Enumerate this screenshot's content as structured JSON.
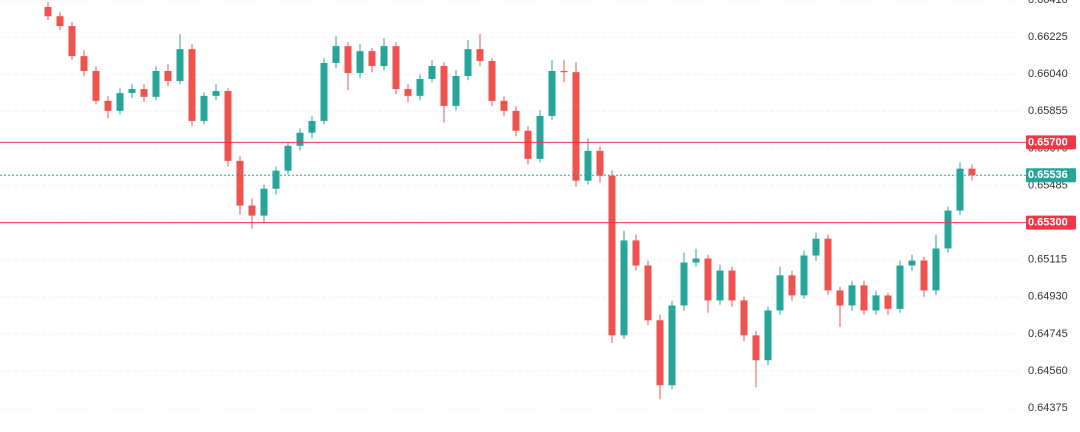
{
  "chart_data": {
    "type": "candlestick",
    "ylim": [
      0.64256,
      0.6641
    ],
    "yticks": [
      {
        "value": 0.6641,
        "label": "0.66410"
      },
      0.66225,
      {
        "value": 0.6604,
        "label": "0.66040"
      },
      0.65855,
      {
        "value": 0.6567,
        "label": "0.65670"
      },
      0.65485,
      {
        "value": 0.653,
        "label": "0.65300"
      },
      0.65115,
      {
        "value": 0.6493,
        "label": "0.64930"
      },
      0.64745,
      {
        "value": 0.6456,
        "label": "0.64560"
      },
      0.64375
    ],
    "grid": true,
    "up_color": "#26a69a",
    "down_color": "#ef5350",
    "levels": [
      {
        "value": 0.657,
        "label": "0.65700",
        "color": "#f23645"
      },
      {
        "value": 0.653,
        "label": "0.65300",
        "color": "#f23645"
      }
    ],
    "current_price": 0.65536,
    "current_color": "#26a69a",
    "candles": [
      [
        0.66375,
        0.664,
        0.6631,
        0.66329
      ],
      [
        0.66329,
        0.6635,
        0.6626,
        0.6628
      ],
      [
        0.6628,
        0.663,
        0.6611,
        0.6613
      ],
      [
        0.6613,
        0.6616,
        0.6603,
        0.66056
      ],
      [
        0.66056,
        0.6608,
        0.6589,
        0.65907
      ],
      [
        0.65907,
        0.6593,
        0.6582,
        0.65857
      ],
      [
        0.65857,
        0.6597,
        0.6584,
        0.65946
      ],
      [
        0.65946,
        0.6599,
        0.6592,
        0.65966
      ],
      [
        0.65966,
        0.6599,
        0.659,
        0.65927
      ],
      [
        0.65927,
        0.6608,
        0.6591,
        0.66056
      ],
      [
        0.66056,
        0.6609,
        0.6598,
        0.66006
      ],
      [
        0.66006,
        0.6624,
        0.6599,
        0.66165
      ],
      [
        0.66165,
        0.6619,
        0.6578,
        0.65807
      ],
      [
        0.65807,
        0.6595,
        0.6579,
        0.65932
      ],
      [
        0.65932,
        0.6599,
        0.6591,
        0.65956
      ],
      [
        0.65956,
        0.6597,
        0.6558,
        0.65608
      ],
      [
        0.65608,
        0.6563,
        0.6534,
        0.65385
      ],
      [
        0.65385,
        0.6542,
        0.6527,
        0.65335
      ],
      [
        0.65335,
        0.6549,
        0.653,
        0.65469
      ],
      [
        0.65469,
        0.6558,
        0.6544,
        0.65559
      ],
      [
        0.65559,
        0.657,
        0.6554,
        0.65683
      ],
      [
        0.65683,
        0.6577,
        0.6566,
        0.65748
      ],
      [
        0.65748,
        0.6583,
        0.6572,
        0.65807
      ],
      [
        0.65807,
        0.6612,
        0.6579,
        0.66096
      ],
      [
        0.66096,
        0.6623,
        0.6607,
        0.6618
      ],
      [
        0.6618,
        0.662,
        0.6596,
        0.66046
      ],
      [
        0.66046,
        0.6619,
        0.6602,
        0.66155
      ],
      [
        0.66155,
        0.6617,
        0.6605,
        0.66081
      ],
      [
        0.66081,
        0.6622,
        0.6606,
        0.6618
      ],
      [
        0.6618,
        0.662,
        0.6594,
        0.65966
      ],
      [
        0.65966,
        0.6599,
        0.659,
        0.65932
      ],
      [
        0.65932,
        0.6604,
        0.6591,
        0.66016
      ],
      [
        0.66016,
        0.6611,
        0.66,
        0.66081
      ],
      [
        0.66081,
        0.661,
        0.658,
        0.65882
      ],
      [
        0.65882,
        0.6606,
        0.6586,
        0.66031
      ],
      [
        0.66031,
        0.6621,
        0.6601,
        0.66165
      ],
      [
        0.66165,
        0.6624,
        0.6608,
        0.66106
      ],
      [
        0.66106,
        0.6612,
        0.6588,
        0.65907
      ],
      [
        0.65907,
        0.6593,
        0.6583,
        0.65857
      ],
      [
        0.65857,
        0.6588,
        0.6573,
        0.65758
      ],
      [
        0.65758,
        0.6578,
        0.6559,
        0.65618
      ],
      [
        0.65618,
        0.6586,
        0.656,
        0.65832
      ],
      [
        0.65832,
        0.6611,
        0.6581,
        0.66056
      ],
      [
        0.66056,
        0.6611,
        0.66,
        0.6605
      ],
      [
        0.6605,
        0.661,
        0.6548,
        0.65509
      ],
      [
        0.65509,
        0.6572,
        0.6549,
        0.65658
      ],
      [
        0.65658,
        0.6568,
        0.655,
        0.65534
      ],
      [
        0.65534,
        0.6556,
        0.647,
        0.64738
      ],
      [
        0.64738,
        0.6526,
        0.6472,
        0.65211
      ],
      [
        0.65211,
        0.6524,
        0.6506,
        0.65086
      ],
      [
        0.65086,
        0.6511,
        0.6479,
        0.64813
      ],
      [
        0.64813,
        0.6484,
        0.6442,
        0.64489
      ],
      [
        0.64489,
        0.6491,
        0.6447,
        0.64887
      ],
      [
        0.64887,
        0.6515,
        0.6486,
        0.65101
      ],
      [
        0.65101,
        0.6517,
        0.6508,
        0.65121
      ],
      [
        0.65121,
        0.6514,
        0.6485,
        0.64912
      ],
      [
        0.64912,
        0.6509,
        0.6489,
        0.65061
      ],
      [
        0.65061,
        0.6508,
        0.6488,
        0.64912
      ],
      [
        0.64912,
        0.6493,
        0.6471,
        0.64738
      ],
      [
        0.64738,
        0.6476,
        0.6448,
        0.64614
      ],
      [
        0.64614,
        0.6488,
        0.6459,
        0.64862
      ],
      [
        0.64862,
        0.6508,
        0.6484,
        0.65037
      ],
      [
        0.65037,
        0.6506,
        0.6491,
        0.64937
      ],
      [
        0.64937,
        0.6516,
        0.6492,
        0.65136
      ],
      [
        0.65136,
        0.6525,
        0.6511,
        0.6522
      ],
      [
        0.6522,
        0.6524,
        0.6494,
        0.64962
      ],
      [
        0.64962,
        0.6498,
        0.6478,
        0.64887
      ],
      [
        0.64887,
        0.6501,
        0.6486,
        0.64987
      ],
      [
        0.64987,
        0.6501,
        0.6484,
        0.64862
      ],
      [
        0.64862,
        0.6496,
        0.6484,
        0.64937
      ],
      [
        0.64937,
        0.6495,
        0.6484,
        0.6487
      ],
      [
        0.6487,
        0.6511,
        0.6485,
        0.65086
      ],
      [
        0.65086,
        0.6514,
        0.6506,
        0.65111
      ],
      [
        0.65111,
        0.6513,
        0.6493,
        0.64962
      ],
      [
        0.64962,
        0.6524,
        0.6494,
        0.65171
      ],
      [
        0.65171,
        0.6538,
        0.6515,
        0.6536
      ],
      [
        0.6536,
        0.656,
        0.6534,
        0.65569
      ],
      [
        0.65569,
        0.6559,
        0.6551,
        0.65536
      ]
    ]
  }
}
